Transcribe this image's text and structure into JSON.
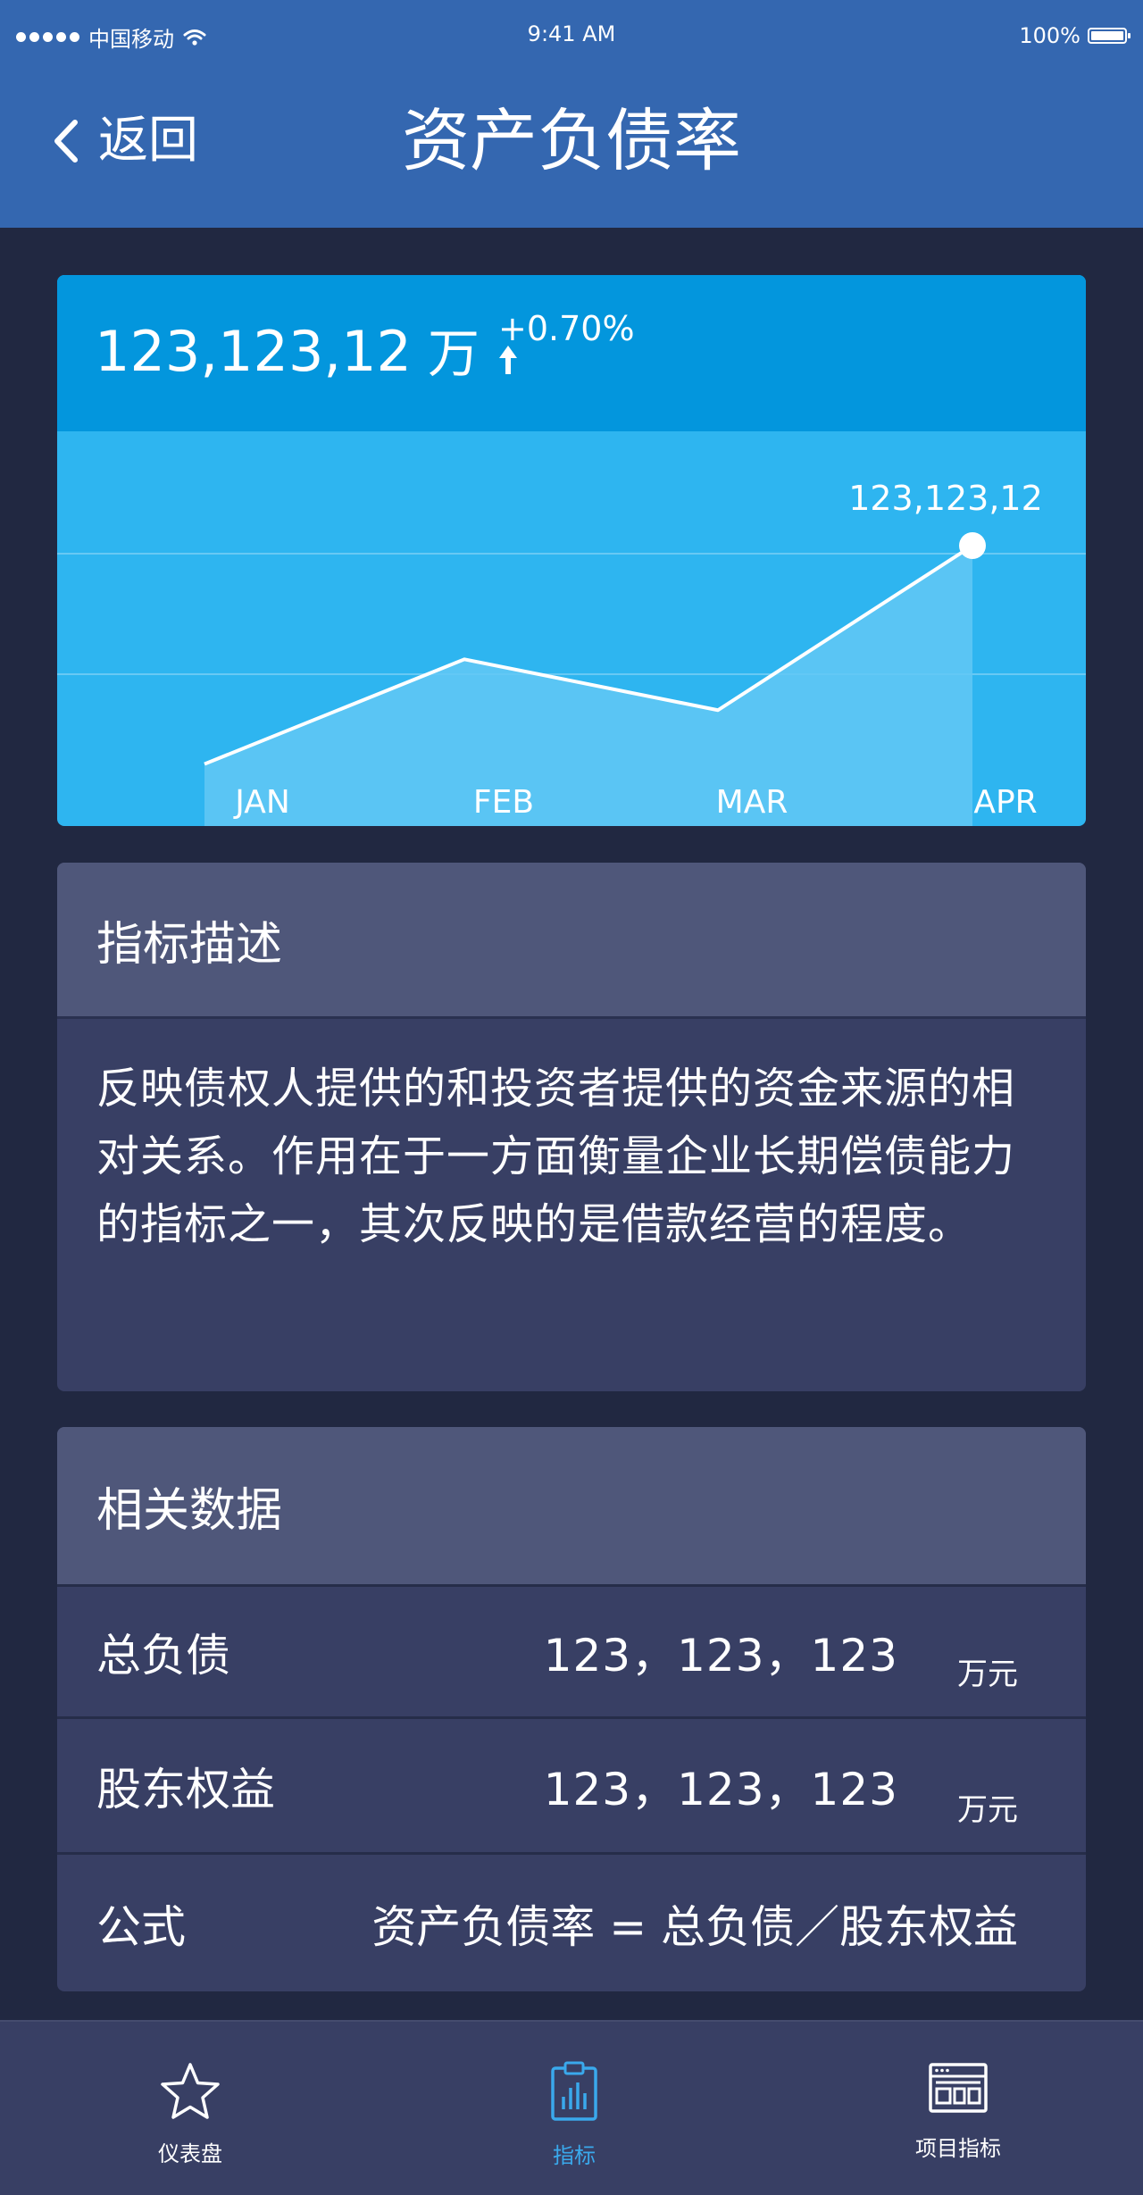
{
  "status_bar": {
    "carrier": "中国移动",
    "time": "9:41 AM",
    "battery": "100%"
  },
  "nav": {
    "back_label": "返回",
    "title": "资产负债率"
  },
  "summary": {
    "value": "123,123,12",
    "unit": "万",
    "change": "+0.70%",
    "trend": "up"
  },
  "chart_data": {
    "type": "area",
    "categories": [
      "JAN",
      "FEB",
      "MAR",
      "APR"
    ],
    "series": [
      {
        "values": [
          0.27,
          0.62,
          0.45,
          1.0
        ]
      }
    ],
    "highlight": {
      "category": "APR",
      "label": "123,123,12"
    },
    "grid": true,
    "colors": {
      "background": "#2eb5f0",
      "fill": "#62c8f5",
      "line": "#ffffff"
    }
  },
  "description": {
    "heading": "指标描述",
    "text": "反映债权人提供的和投资者提供的资金来源的相对关系。作用在于一方面衡量企业长期偿债能力的指标之一，其次反映的是借款经营的程度。"
  },
  "related": {
    "heading": "相关数据",
    "rows": [
      {
        "label": "总负债",
        "value": "123，123，123",
        "unit": "万元"
      },
      {
        "label": "股东权益",
        "value": "123，123，123",
        "unit": "万元"
      }
    ],
    "formula": {
      "label": "公式",
      "value": "资产负债率 = 总负债／股东权益"
    }
  },
  "tabs": [
    {
      "label": "仪表盘",
      "icon": "star-icon"
    },
    {
      "label": "指标",
      "icon": "clipboard-chart-icon",
      "active": true
    },
    {
      "label": "项目指标",
      "icon": "browser-window-icon"
    }
  ],
  "colors": {
    "page_bg": "#212841",
    "header_bg": "#3467b0",
    "accent": "#3aa9ec"
  }
}
